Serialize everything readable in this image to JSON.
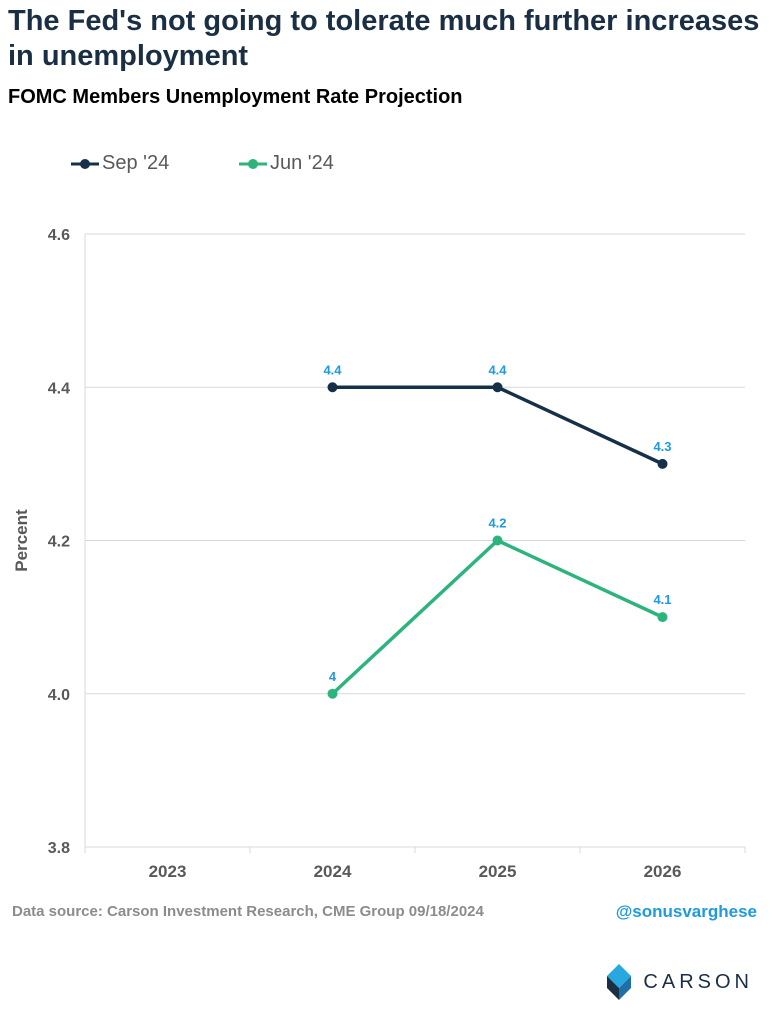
{
  "header": {
    "headline": "The Fed's not going to tolerate much further increases in unemployment",
    "subtitle": "FOMC Members Unemployment Rate Projection"
  },
  "chart_data": {
    "type": "line",
    "title": "FOMC Members Unemployment Rate Projection",
    "xlabel": "",
    "ylabel": "Percent",
    "categories": [
      "2023",
      "2024",
      "2025",
      "2026"
    ],
    "ylim": [
      3.8,
      4.6
    ],
    "yticks": [
      "3.8",
      "4.0",
      "4.2",
      "4.4",
      "4.6"
    ],
    "grid": true,
    "legend_position": "top-left",
    "series": [
      {
        "name": "Sep '24",
        "color": "#16304a",
        "values": [
          null,
          4.4,
          4.4,
          4.3
        ],
        "labels": [
          null,
          "4.4",
          "4.4",
          "4.3"
        ]
      },
      {
        "name": "Jun '24",
        "color": "#2db47d",
        "values": [
          null,
          4.0,
          4.2,
          4.1
        ],
        "labels": [
          null,
          "4",
          "4.2",
          "4.1"
        ]
      }
    ],
    "label_color": "#1e9be0"
  },
  "footer": {
    "source": "Data source: Carson Investment Research, CME Group   09/18/2024",
    "handle": "@sonusvarghese",
    "brand": "CARSON"
  },
  "icons": {
    "brand_logo": "carson-logo-icon"
  }
}
